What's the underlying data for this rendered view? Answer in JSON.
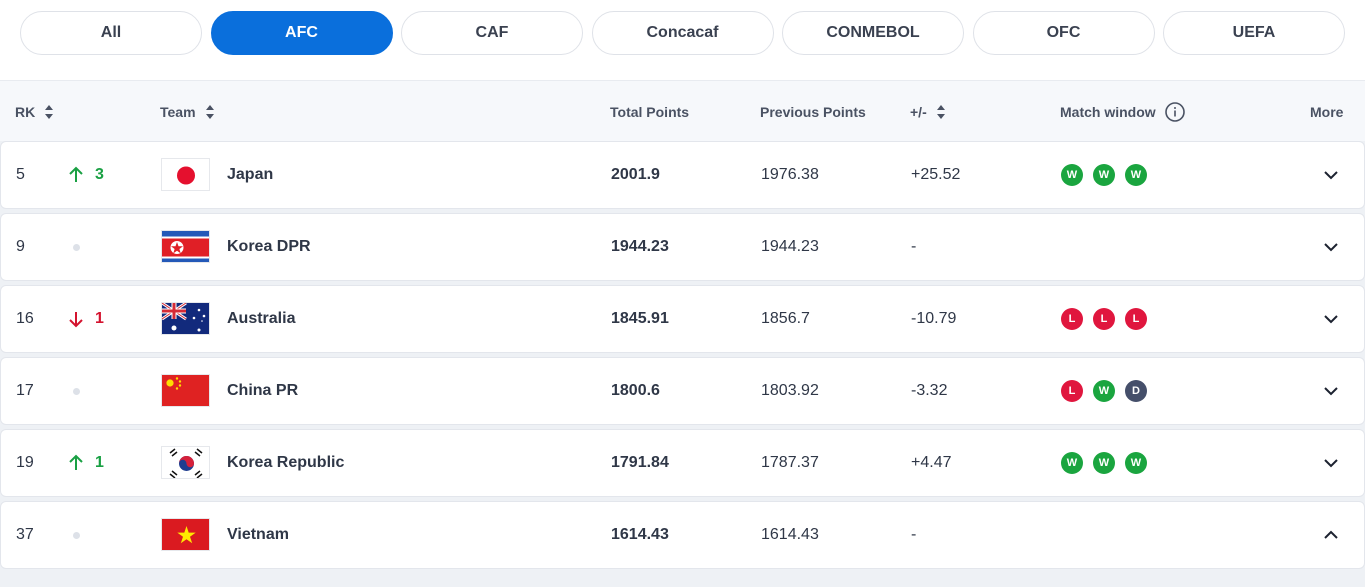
{
  "tabs": {
    "items": [
      "All",
      "AFC",
      "CAF",
      "Concacaf",
      "CONMEBOL",
      "OFC",
      "UEFA"
    ],
    "active": 1
  },
  "table": {
    "headers": {
      "rank": "RK",
      "team": "Team",
      "total": "Total Points",
      "previous": "Previous Points",
      "diff": "+/-",
      "match": "Match window",
      "more": "More"
    },
    "form_colors": {
      "W": "#1aa53f",
      "L": "#e0163e",
      "D": "#454f6a"
    },
    "movement_colors": {
      "up": "#19a043",
      "down": "#d4132f"
    },
    "rows": [
      {
        "rank": "5",
        "movement": {
          "direction": "up",
          "value": "3"
        },
        "team": "Japan",
        "total": "2001.9",
        "previous": "1976.38",
        "diff": "+25.52",
        "form": [
          "W",
          "W",
          "W"
        ],
        "expanded": false
      },
      {
        "rank": "9",
        "movement": null,
        "team": "Korea DPR",
        "total": "1944.23",
        "previous": "1944.23",
        "diff": "-",
        "form": [],
        "expanded": false
      },
      {
        "rank": "16",
        "movement": {
          "direction": "down",
          "value": "1"
        },
        "team": "Australia",
        "total": "1845.91",
        "previous": "1856.7",
        "diff": "-10.79",
        "form": [
          "L",
          "L",
          "L"
        ],
        "expanded": false
      },
      {
        "rank": "17",
        "movement": null,
        "team": "China PR",
        "total": "1800.6",
        "previous": "1803.92",
        "diff": "-3.32",
        "form": [
          "L",
          "W",
          "D"
        ],
        "expanded": false
      },
      {
        "rank": "19",
        "movement": {
          "direction": "up",
          "value": "1"
        },
        "team": "Korea Republic",
        "total": "1791.84",
        "previous": "1787.37",
        "diff": "+4.47",
        "form": [
          "W",
          "W",
          "W"
        ],
        "expanded": false
      },
      {
        "rank": "37",
        "movement": null,
        "team": "Vietnam",
        "total": "1614.43",
        "previous": "1614.43",
        "diff": "-",
        "form": [],
        "expanded": true
      }
    ]
  }
}
